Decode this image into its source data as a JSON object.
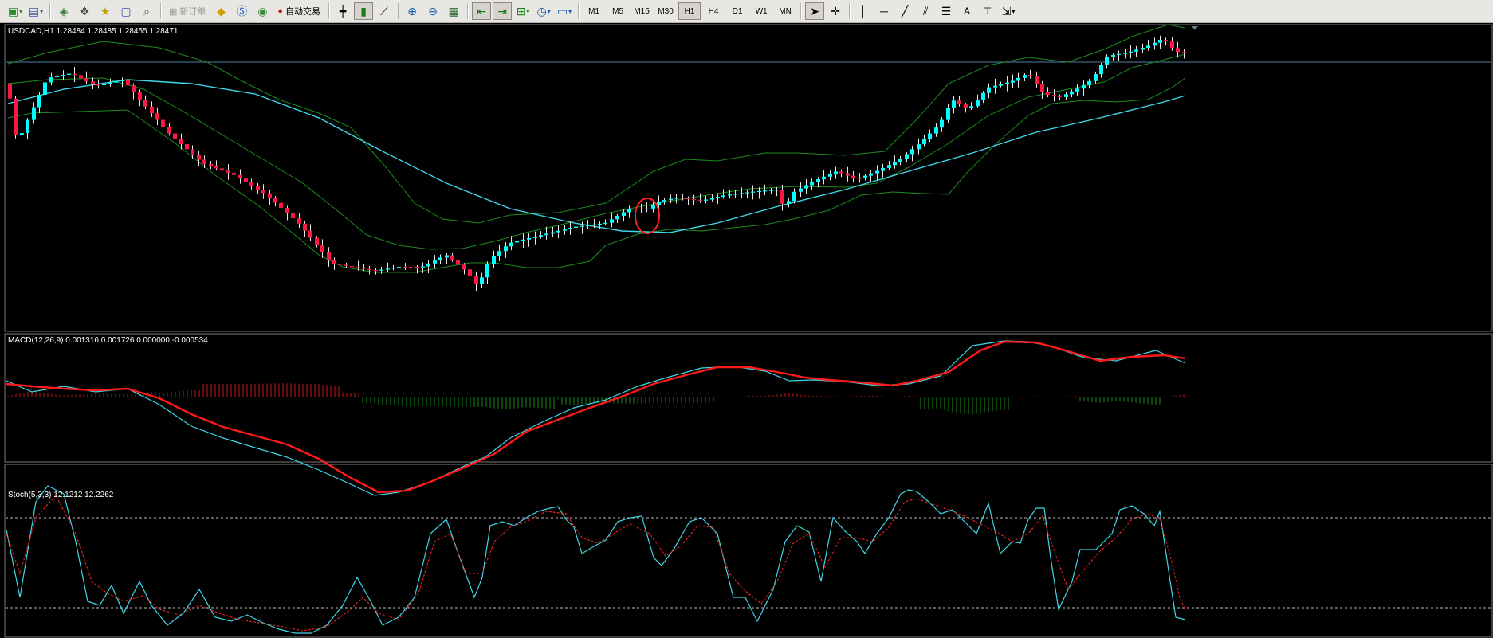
{
  "toolbar": {
    "new_order_label": "新订单",
    "auto_trading_label": "自动交易",
    "timeframes": [
      "M1",
      "M5",
      "M15",
      "M30",
      "H1",
      "H4",
      "D1",
      "W1",
      "MN"
    ],
    "active_timeframe": "H1"
  },
  "price_panel": {
    "header": "USDCAD,H1  1.28484 1.28485 1.28455 1.28471"
  },
  "macd_panel": {
    "header": "MACD(12,26,9) 0.001316 0.001726 0.000000 -0.000534"
  },
  "stoch_panel": {
    "header": "Stoch(5,3,3) 12.1212 12.2262"
  },
  "colors": {
    "background": "#000000",
    "bull_candle": "#00ffff",
    "bear_candle": "#ff1744",
    "bollinger": "#1e8c1e",
    "moving_average": "#3fd7e8",
    "macd_line": "#ff1a1a",
    "signal_line": "#3fd7e8",
    "highlight_circle": "#ff2020"
  }
}
